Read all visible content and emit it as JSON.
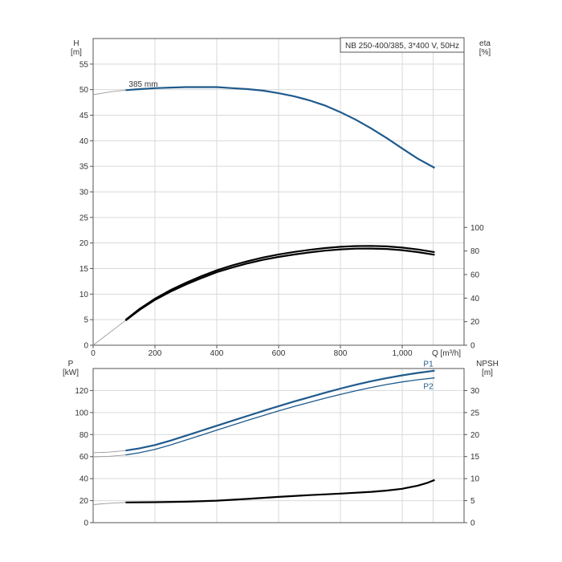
{
  "chart_data": [
    {
      "type": "line",
      "title": "NB 250-400/385, 3*400 V, 50Hz",
      "xlabel": "Q [m³/h]",
      "ylabel_left": "H\n[m]",
      "ylabel_right": "eta\n[%]",
      "xlim": [
        0,
        1200
      ],
      "ylim_left": [
        0,
        60
      ],
      "ylim_right": [
        0,
        100
      ],
      "x_ticks": [
        "0",
        "200",
        "400",
        "600",
        "800",
        "1,000"
      ],
      "y_ticks_left": [
        "0",
        "5",
        "10",
        "15",
        "20",
        "25",
        "30",
        "35",
        "40",
        "45",
        "50",
        "55"
      ],
      "y_ticks_right": [
        "0",
        "20",
        "40",
        "60",
        "80",
        "100"
      ],
      "grid": true,
      "annotations": [
        {
          "text": "385 mm",
          "x": 105,
          "y": 50.5
        }
      ],
      "series": [
        {
          "axis": "left",
          "color": "#1f5a8c",
          "ext_x": [
            0,
            30,
            60,
            105
          ],
          "ext_y": [
            49.0,
            49.3,
            49.6,
            49.9
          ],
          "x": [
            105,
            150,
            200,
            250,
            300,
            350,
            400,
            450,
            500,
            550,
            600,
            650,
            700,
            750,
            800,
            850,
            900,
            950,
            1000,
            1050,
            1105
          ],
          "y": [
            49.9,
            50.1,
            50.3,
            50.4,
            50.5,
            50.5,
            50.5,
            50.3,
            50.1,
            49.8,
            49.3,
            48.7,
            47.9,
            46.9,
            45.6,
            44.1,
            42.4,
            40.5,
            38.5,
            36.5,
            34.7
          ]
        },
        {
          "axis": "right",
          "color": "#000000",
          "ext_x": [
            0,
            105
          ],
          "ext_y": [
            0,
            21
          ],
          "x": [
            105,
            150,
            200,
            250,
            300,
            350,
            400,
            450,
            500,
            550,
            600,
            650,
            700,
            750,
            800,
            850,
            900,
            950,
            1000,
            1050,
            1105
          ],
          "y": [
            21,
            30,
            38.5,
            45.5,
            51.5,
            57,
            62,
            66,
            69.5,
            72.5,
            75,
            77,
            78.8,
            80.3,
            81.4,
            82.0,
            82.1,
            81.7,
            80.7,
            79.1,
            76.8
          ]
        },
        {
          "axis": "right",
          "color": "#000000",
          "x": [
            105,
            150,
            200,
            250,
            300,
            350,
            400,
            450,
            500,
            550,
            600,
            650,
            700,
            750,
            800,
            850,
            900,
            950,
            1000,
            1050,
            1105
          ],
          "y": [
            21.5,
            30.8,
            39.5,
            46.8,
            53,
            58.6,
            63.6,
            67.8,
            71.4,
            74.5,
            77.1,
            79.2,
            81.0,
            82.5,
            83.6,
            84.2,
            84.3,
            83.9,
            82.9,
            81.3,
            79.0
          ]
        }
      ]
    },
    {
      "type": "line",
      "xlim": [
        0,
        1200
      ],
      "ylabel_left": "P\n[kW]",
      "ylabel_right": "NPSH\n[m]",
      "ylim_left": [
        0,
        140
      ],
      "ylim_right": [
        0,
        35
      ],
      "y_ticks_left": [
        "0",
        "20",
        "40",
        "60",
        "80",
        "100",
        "120"
      ],
      "y_ticks_right": [
        "0",
        "5",
        "10",
        "15",
        "20",
        "25",
        "30"
      ],
      "grid": true,
      "series": [
        {
          "name": "P1",
          "axis": "left",
          "color": "#1f5a8c",
          "ext_x": [
            0,
            50,
            105
          ],
          "ext_y": [
            63.5,
            64,
            65.5
          ],
          "x": [
            105,
            150,
            200,
            250,
            300,
            350,
            400,
            450,
            500,
            550,
            600,
            650,
            700,
            750,
            800,
            850,
            900,
            950,
            1000,
            1050,
            1105
          ],
          "y": [
            65.5,
            67.5,
            70.5,
            74.5,
            79,
            83.5,
            88,
            92.5,
            97,
            101.5,
            105.8,
            110,
            114,
            118,
            121.8,
            125.3,
            128.5,
            131.3,
            133.8,
            136,
            138
          ]
        },
        {
          "name": "P2",
          "axis": "left",
          "color": "#1f5a8c",
          "ext_x": [
            0,
            50,
            105
          ],
          "ext_y": [
            59.8,
            60.2,
            61.5
          ],
          "x": [
            105,
            150,
            200,
            250,
            300,
            350,
            400,
            450,
            500,
            550,
            600,
            650,
            700,
            750,
            800,
            850,
            900,
            950,
            1000,
            1050,
            1105
          ],
          "y": [
            61.5,
            63.5,
            66.5,
            70.5,
            75,
            79.5,
            84,
            88.5,
            93,
            97.3,
            101.5,
            105.5,
            109.3,
            113,
            116.5,
            119.8,
            122.8,
            125.5,
            127.8,
            129.8,
            131.5
          ]
        },
        {
          "axis": "right",
          "color": "#000000",
          "ext_x": [
            0,
            50,
            105
          ],
          "ext_y": [
            4.1,
            4.4,
            4.6
          ],
          "x": [
            105,
            200,
            300,
            400,
            500,
            600,
            700,
            800,
            900,
            950,
            1000,
            1050,
            1080,
            1105
          ],
          "y": [
            4.6,
            4.65,
            4.75,
            5.0,
            5.4,
            5.85,
            6.25,
            6.6,
            7.0,
            7.3,
            7.7,
            8.4,
            9.0,
            9.7
          ]
        }
      ]
    }
  ]
}
